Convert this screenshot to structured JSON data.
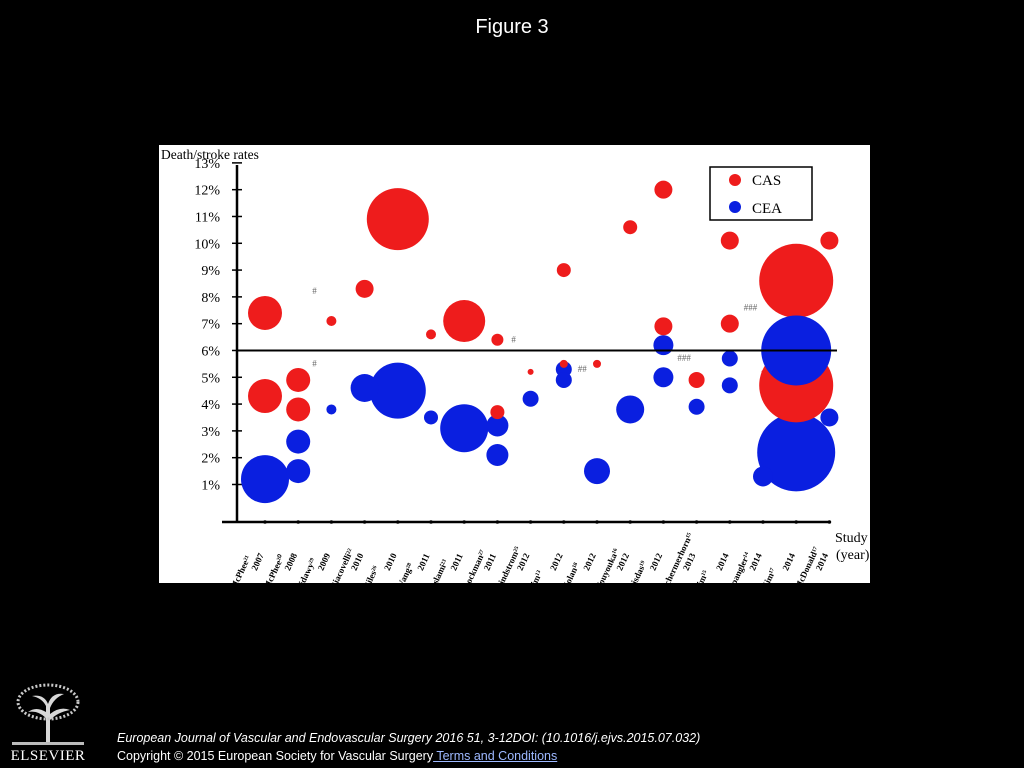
{
  "slide": {
    "title": "Figure 3",
    "citation": "European Journal of Vascular and Endovascular Surgery 2016 51, 3-12DOI: (10.1016/j.ejvs.2015.07.032)",
    "copyright": "Copyright © 2015 European Society for Vascular Surgery",
    "terms_link": " Terms and Conditions",
    "logo_text": "ELSEVIER"
  },
  "chart_data": {
    "type": "scatter",
    "title": "",
    "ylabel": "Death/stroke rates",
    "xlabel": [
      "Study",
      "(year)"
    ],
    "ylim": [
      0,
      13.5
    ],
    "yticks": [
      "1%",
      "2%",
      "3%",
      "4%",
      "5%",
      "6%",
      "7%",
      "8%",
      "9%",
      "10%",
      "11%",
      "12%",
      "13%"
    ],
    "reference_line": 6,
    "studies": [
      {
        "name": "McPhee²¹",
        "year": "2007"
      },
      {
        "name": "McPhee²⁰",
        "year": "2008"
      },
      {
        "name": "Sidawy²⁹",
        "year": "2009"
      },
      {
        "name": "Giacovelli²²",
        "year": "2010"
      },
      {
        "name": "Giles²⁶",
        "year": "2010"
      },
      {
        "name": "Wang²⁸",
        "year": "2011"
      },
      {
        "name": "Eslami²³",
        "year": "2011"
      },
      {
        "name": "Rockman²⁷",
        "year": "2011"
      },
      {
        "name": "Lindstrom²⁵",
        "year": "2012"
      },
      {
        "name": "Jim¹³",
        "year": "2012"
      },
      {
        "name": "Nolan¹⁸",
        "year": "2012"
      },
      {
        "name": "Vouyouka¹⁶",
        "year": "2012"
      },
      {
        "name": "Bisdas¹⁹",
        "year": "2012"
      },
      {
        "name": "Schermerhorn¹⁵",
        "year": "2013"
      },
      {
        "name": "Jim¹⁵",
        "year": "2014"
      },
      {
        "name": "Spangler¹⁴",
        "year": "2014"
      },
      {
        "name": "Kim¹⁷",
        "year": "2014"
      },
      {
        "name": "McDonald¹⁷",
        "year": "2014"
      }
    ],
    "legend": {
      "position": "top-right",
      "entries": [
        {
          "label": "CAS",
          "color": "#ee1c1c"
        },
        {
          "label": "CEA",
          "color": "#0a1fe0"
        }
      ]
    },
    "series": [
      {
        "name": "CAS",
        "color": "#ee1c1c",
        "points": [
          {
            "x": 1,
            "y": 7.4,
            "size": 17
          },
          {
            "x": 1,
            "y": 4.3,
            "size": 17
          },
          {
            "x": 2,
            "y": 4.9,
            "size": 12
          },
          {
            "x": 2,
            "y": 3.8,
            "size": 12
          },
          {
            "x": 3,
            "y": 7.1,
            "size": 5
          },
          {
            "x": 4,
            "y": 8.3,
            "size": 9
          },
          {
            "x": 5,
            "y": 10.9,
            "size": 31
          },
          {
            "x": 6,
            "y": 6.6,
            "size": 5
          },
          {
            "x": 7,
            "y": 7.1,
            "size": 21
          },
          {
            "x": 8,
            "y": 6.4,
            "size": 6
          },
          {
            "x": 8,
            "y": 3.7,
            "size": 7
          },
          {
            "x": 9,
            "y": 5.2,
            "size": 3
          },
          {
            "x": 10,
            "y": 9.0,
            "size": 7
          },
          {
            "x": 10,
            "y": 5.5,
            "size": 4
          },
          {
            "x": 11,
            "y": 5.5,
            "size": 4
          },
          {
            "x": 12,
            "y": 10.6,
            "size": 7
          },
          {
            "x": 13,
            "y": 12.0,
            "size": 9
          },
          {
            "x": 13,
            "y": 6.9,
            "size": 9
          },
          {
            "x": 14,
            "y": 4.9,
            "size": 8
          },
          {
            "x": 15,
            "y": 10.1,
            "size": 9
          },
          {
            "x": 15,
            "y": 7.0,
            "size": 9
          },
          {
            "x": 16,
            "y": 5.2,
            "size": 1.5
          },
          {
            "x": 17,
            "y": 8.6,
            "size": 37
          },
          {
            "x": 17,
            "y": 4.7,
            "size": 37
          },
          {
            "x": 18,
            "y": 10.1,
            "size": 9
          }
        ]
      },
      {
        "name": "CEA",
        "color": "#0a1fe0",
        "points": [
          {
            "x": 1,
            "y": 1.2,
            "size": 24
          },
          {
            "x": 2,
            "y": 2.6,
            "size": 12
          },
          {
            "x": 2,
            "y": 1.5,
            "size": 12
          },
          {
            "x": 3,
            "y": 3.8,
            "size": 5
          },
          {
            "x": 4,
            "y": 4.6,
            "size": 14
          },
          {
            "x": 5,
            "y": 4.5,
            "size": 28
          },
          {
            "x": 6,
            "y": 3.5,
            "size": 7
          },
          {
            "x": 7,
            "y": 3.1,
            "size": 24
          },
          {
            "x": 8,
            "y": 3.2,
            "size": 11
          },
          {
            "x": 8,
            "y": 2.1,
            "size": 11
          },
          {
            "x": 9,
            "y": 4.2,
            "size": 8
          },
          {
            "x": 10,
            "y": 5.3,
            "size": 8
          },
          {
            "x": 10,
            "y": 4.9,
            "size": 8
          },
          {
            "x": 11,
            "y": 1.5,
            "size": 13
          },
          {
            "x": 12,
            "y": 3.8,
            "size": 14
          },
          {
            "x": 13,
            "y": 6.2,
            "size": 10
          },
          {
            "x": 13,
            "y": 5.0,
            "size": 10
          },
          {
            "x": 14,
            "y": 3.9,
            "size": 8
          },
          {
            "x": 15,
            "y": 5.7,
            "size": 8
          },
          {
            "x": 15,
            "y": 4.7,
            "size": 8
          },
          {
            "x": 16,
            "y": 1.3,
            "size": 10
          },
          {
            "x": 17,
            "y": 6.0,
            "size": 35
          },
          {
            "x": 17,
            "y": 2.2,
            "size": 39
          },
          {
            "x": 18,
            "y": 3.5,
            "size": 9
          }
        ]
      }
    ],
    "annotations": [
      {
        "x": 2,
        "y": 8.1,
        "text": "#"
      },
      {
        "x": 2,
        "y": 5.4,
        "text": "#"
      },
      {
        "x": 8,
        "y": 6.3,
        "text": "#"
      },
      {
        "x": 10,
        "y": 5.2,
        "text": "##"
      },
      {
        "x": 13,
        "y": 5.6,
        "text": "###"
      },
      {
        "x": 15,
        "y": 7.5,
        "text": "###"
      }
    ]
  }
}
